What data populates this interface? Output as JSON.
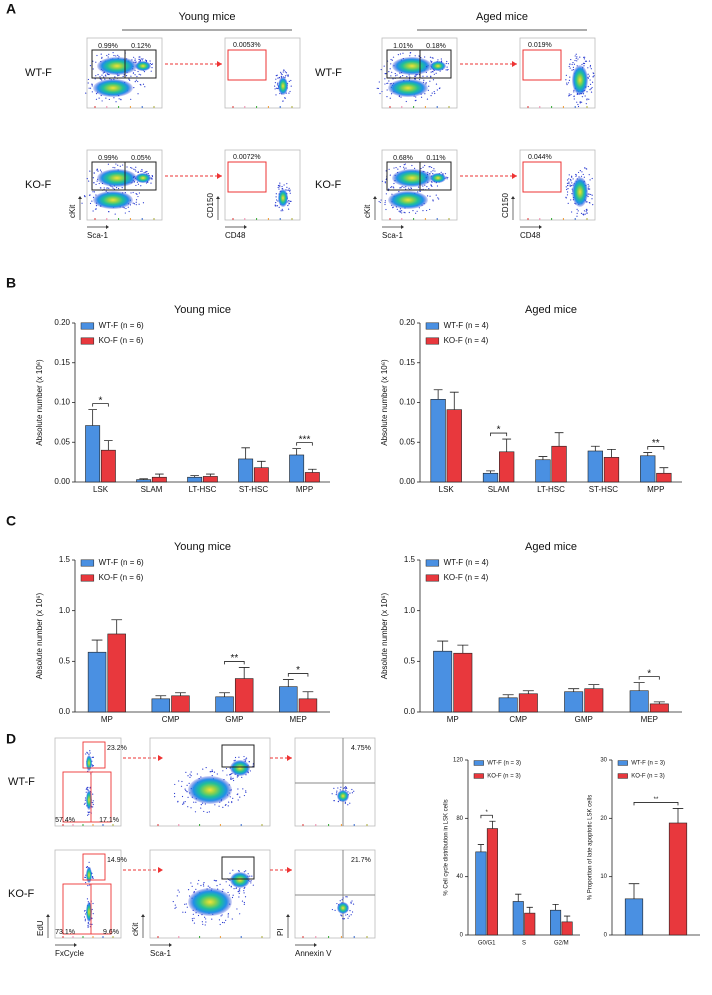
{
  "panel_labels": [
    "A",
    "B",
    "C",
    "D"
  ],
  "panel_a": {
    "groups": [
      {
        "title": "Young mice",
        "rows": [
          {
            "label": "WT-F",
            "lsk": [
              "0.99%",
              "0.12%"
            ],
            "slam": "0.0053%"
          },
          {
            "label": "KO-F",
            "lsk": [
              "0.99%",
              "0.05%"
            ],
            "slam": "0.0072%"
          }
        ]
      },
      {
        "title": "Aged mice",
        "rows": [
          {
            "label": "WT-F",
            "lsk": [
              "1.01%",
              "0.18%"
            ],
            "slam": "0.019%"
          },
          {
            "label": "KO-F",
            "lsk": [
              "0.68%",
              "0.11%"
            ],
            "slam": "0.044%"
          }
        ]
      }
    ],
    "axis_labels": {
      "lsk_x": "Sca-1",
      "lsk_y": "cKit",
      "slam_x": "CD48",
      "slam_y": "CD150"
    }
  },
  "panel_d": {
    "rows": [
      {
        "label": "WT-F",
        "cycle": [
          "23.2%",
          "57.4%",
          "17.1%"
        ],
        "apoptosis": "4.75%"
      },
      {
        "label": "KO-F",
        "cycle": [
          "14.9%",
          "73.1%",
          "9.6%"
        ],
        "apoptosis": "21.7%"
      }
    ],
    "axis_labels": {
      "cycle_x": "FxCycle",
      "cycle_y": "EdU",
      "lsk_x": "Sca-1",
      "lsk_y": "cKit",
      "apo_x": "Annexin V",
      "apo_y": "PI"
    }
  },
  "chart_data": [
    {
      "type": "bar",
      "title": "Young mice",
      "ylabel": "Absolute number (x 10⁶)",
      "categories": [
        "LSK",
        "SLAM",
        "LT-HSC",
        "ST-HSC",
        "MPP"
      ],
      "series": [
        {
          "name": "WT-F (n = 6)",
          "color": "#4a90e2",
          "values": [
            0.071,
            0.003,
            0.006,
            0.029,
            0.034
          ],
          "errors": [
            0.02,
            0.001,
            0.002,
            0.014,
            0.008
          ]
        },
        {
          "name": "KO-F (n = 6)",
          "color": "#e8383d",
          "values": [
            0.04,
            0.006,
            0.007,
            0.018,
            0.012
          ],
          "errors": [
            0.012,
            0.004,
            0.003,
            0.008,
            0.004
          ]
        }
      ],
      "significance": [
        "*",
        null,
        null,
        null,
        "***"
      ],
      "ylim": [
        0,
        0.2
      ],
      "yticks": [
        {
          "value": 0,
          "label": "0.00"
        },
        0.05,
        {
          "value": 0.1,
          "label": "0.10"
        },
        0.15,
        {
          "value": 0.2,
          "label": "0.20"
        }
      ]
    },
    {
      "type": "bar",
      "title": "Aged mice",
      "ylabel": "Absolute number (x 10⁶)",
      "categories": [
        "LSK",
        "SLAM",
        "LT-HSC",
        "ST-HSC",
        "MPP"
      ],
      "series": [
        {
          "name": "WT-F (n = 4)",
          "color": "#4a90e2",
          "values": [
            0.104,
            0.011,
            0.028,
            0.039,
            0.033
          ],
          "errors": [
            0.012,
            0.003,
            0.004,
            0.006,
            0.004
          ]
        },
        {
          "name": "KO-F (n = 4)",
          "color": "#e8383d",
          "values": [
            0.091,
            0.038,
            0.045,
            0.031,
            0.011
          ],
          "errors": [
            0.022,
            0.016,
            0.017,
            0.01,
            0.007
          ]
        }
      ],
      "significance": [
        null,
        "*",
        null,
        null,
        "**"
      ],
      "ylim": [
        0,
        0.2
      ],
      "yticks": [
        {
          "value": 0,
          "label": "0.00"
        },
        0.05,
        {
          "value": 0.1,
          "label": "0.10"
        },
        0.15,
        {
          "value": 0.2,
          "label": "0.20"
        }
      ]
    },
    {
      "type": "bar",
      "title": "Young mice",
      "ylabel": "Absolute number (x 10⁶)",
      "categories": [
        "MP",
        "CMP",
        "GMP",
        "MEP"
      ],
      "series": [
        {
          "name": "WT-F (n = 6)",
          "color": "#4a90e2",
          "values": [
            0.59,
            0.13,
            0.15,
            0.25
          ],
          "errors": [
            0.12,
            0.03,
            0.04,
            0.07
          ]
        },
        {
          "name": "KO-F (n = 6)",
          "color": "#e8383d",
          "values": [
            0.77,
            0.16,
            0.33,
            0.13
          ],
          "errors": [
            0.14,
            0.03,
            0.11,
            0.07
          ]
        }
      ],
      "significance": [
        null,
        null,
        "**",
        "*"
      ],
      "ylim": [
        0,
        1.5
      ],
      "yticks": [
        {
          "value": 0,
          "label": "0.0"
        },
        0.5,
        {
          "value": 1,
          "label": "1.0"
        },
        1.5
      ]
    },
    {
      "type": "bar",
      "title": "Aged mice",
      "ylabel": "Absolute number (x 10⁶)",
      "categories": [
        "MP",
        "CMP",
        "GMP",
        "MEP"
      ],
      "series": [
        {
          "name": "WT-F (n = 4)",
          "color": "#4a90e2",
          "values": [
            0.6,
            0.14,
            0.2,
            0.21
          ],
          "errors": [
            0.1,
            0.03,
            0.03,
            0.08
          ]
        },
        {
          "name": "KO-F (n = 4)",
          "color": "#e8383d",
          "values": [
            0.58,
            0.18,
            0.23,
            0.08
          ],
          "errors": [
            0.08,
            0.03,
            0.04,
            0.02
          ]
        }
      ],
      "significance": [
        null,
        null,
        null,
        "*"
      ],
      "ylim": [
        0,
        1.5
      ],
      "yticks": [
        {
          "value": 0,
          "label": "0.0"
        },
        0.5,
        {
          "value": 1,
          "label": "1.0"
        },
        1.5
      ]
    },
    {
      "type": "bar",
      "ylabel": "% Cell cycle distribution in LSK cells",
      "categories": [
        "G0/G1",
        "S",
        "G2/M"
      ],
      "series": [
        {
          "name": "WT-F (n = 3)",
          "color": "#4a90e2",
          "values": [
            57,
            23,
            17
          ],
          "errors": [
            5,
            5,
            4
          ]
        },
        {
          "name": "KO-F (n = 3)",
          "color": "#e8383d",
          "values": [
            73,
            15,
            9
          ],
          "errors": [
            5,
            4,
            4
          ]
        }
      ],
      "significance": [
        "*",
        null,
        null
      ],
      "ylim": [
        0,
        120
      ],
      "yticks": [
        0,
        40,
        80,
        120
      ]
    },
    {
      "type": "bar",
      "ylabel": "% Proportion of late apoptotic LSK cells",
      "categories": [
        null
      ],
      "series": [
        {
          "name": "WT-F (n = 3)",
          "color": "#4a90e2",
          "values": [
            6.2
          ],
          "errors": [
            2.6
          ]
        },
        {
          "name": "KO-F (n = 3)",
          "color": "#e8383d",
          "values": [
            19.2
          ],
          "errors": [
            2.5
          ]
        }
      ],
      "significance": [
        "**"
      ],
      "ylim": [
        0,
        30
      ],
      "yticks": [
        0,
        10,
        20,
        30
      ]
    }
  ]
}
